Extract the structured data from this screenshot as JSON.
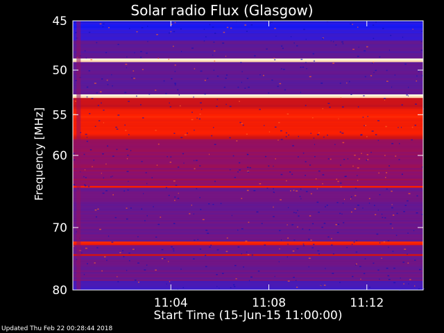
{
  "chart_data": {
    "type": "heatmap",
    "title": "Solar radio Flux (Glasgow)",
    "xlabel": "Start Time (15-Jun-15 11:00:00)",
    "ylabel": "Frequency [MHz]",
    "x_tick_labels": [
      "11:04",
      "11:08",
      "11:12"
    ],
    "x_ticks_min": [
      4,
      8,
      12
    ],
    "y_ticks": [
      45,
      50,
      55,
      60,
      70,
      80
    ],
    "y_tick_labels": [
      "45",
      "50",
      "55",
      "60",
      "70",
      "80"
    ],
    "y_scale": "log",
    "ylim": [
      45,
      80
    ],
    "xlim_min": [
      0,
      14.3
    ],
    "bands": [
      {
        "freq": [
          45,
          45.8
        ],
        "level": "low"
      },
      {
        "freq": [
          48.7,
          49.1
        ],
        "level": "saturated"
      },
      {
        "freq": [
          52.6,
          53.0
        ],
        "level": "saturated"
      },
      {
        "freq": [
          54.3,
          57.5
        ],
        "level": "high"
      },
      {
        "freq": [
          64.0,
          64.4
        ],
        "level": "high"
      },
      {
        "freq": [
          72.1,
          72.6
        ],
        "level": "high"
      },
      {
        "freq": [
          74.0,
          74.3
        ],
        "level": "medium"
      }
    ],
    "colormap": [
      "#000000",
      "#1a1aff",
      "#5a1a9a",
      "#8a1070",
      "#c01020",
      "#ff2000",
      "#ff9040",
      "#fffbe0"
    ]
  },
  "footer": "Updated Thu Feb 22 00:28:44 2018"
}
